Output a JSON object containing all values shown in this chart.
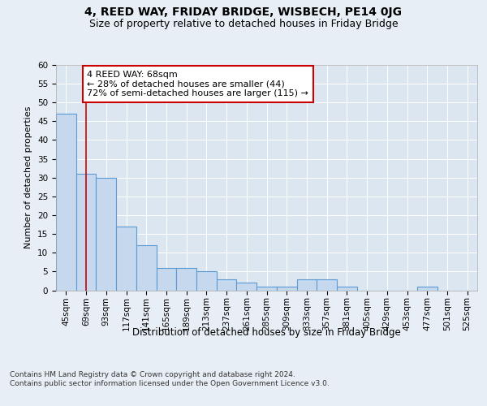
{
  "title": "4, REED WAY, FRIDAY BRIDGE, WISBECH, PE14 0JG",
  "subtitle": "Size of property relative to detached houses in Friday Bridge",
  "xlabel": "Distribution of detached houses by size in Friday Bridge",
  "ylabel": "Number of detached properties",
  "categories": [
    "45sqm",
    "69sqm",
    "93sqm",
    "117sqm",
    "141sqm",
    "165sqm",
    "189sqm",
    "213sqm",
    "237sqm",
    "261sqm",
    "285sqm",
    "309sqm",
    "333sqm",
    "357sqm",
    "381sqm",
    "405sqm",
    "429sqm",
    "453sqm",
    "477sqm",
    "501sqm",
    "525sqm"
  ],
  "values": [
    47,
    31,
    30,
    17,
    12,
    6,
    6,
    5,
    3,
    2,
    1,
    1,
    3,
    3,
    1,
    0,
    0,
    0,
    1,
    0,
    0
  ],
  "bar_color": "#c5d8ed",
  "bar_edge_color": "#5b9bd5",
  "bar_edge_width": 0.8,
  "vline_x": 1,
  "vline_color": "#cc0000",
  "annotation_text": "4 REED WAY: 68sqm\n← 28% of detached houses are smaller (44)\n72% of semi-detached houses are larger (115) →",
  "annotation_box_edgecolor": "#cc0000",
  "annotation_box_facecolor": "#ffffff",
  "ylim": [
    0,
    60
  ],
  "yticks": [
    0,
    5,
    10,
    15,
    20,
    25,
    30,
    35,
    40,
    45,
    50,
    55,
    60
  ],
  "background_color": "#e8eef5",
  "plot_background_color": "#dce6f1",
  "footer_text": "Contains HM Land Registry data © Crown copyright and database right 2024.\nContains public sector information licensed under the Open Government Licence v3.0.",
  "title_fontsize": 10,
  "subtitle_fontsize": 9,
  "xlabel_fontsize": 8.5,
  "ylabel_fontsize": 8,
  "tick_fontsize": 7.5,
  "footer_fontsize": 6.5,
  "annotation_fontsize": 8
}
